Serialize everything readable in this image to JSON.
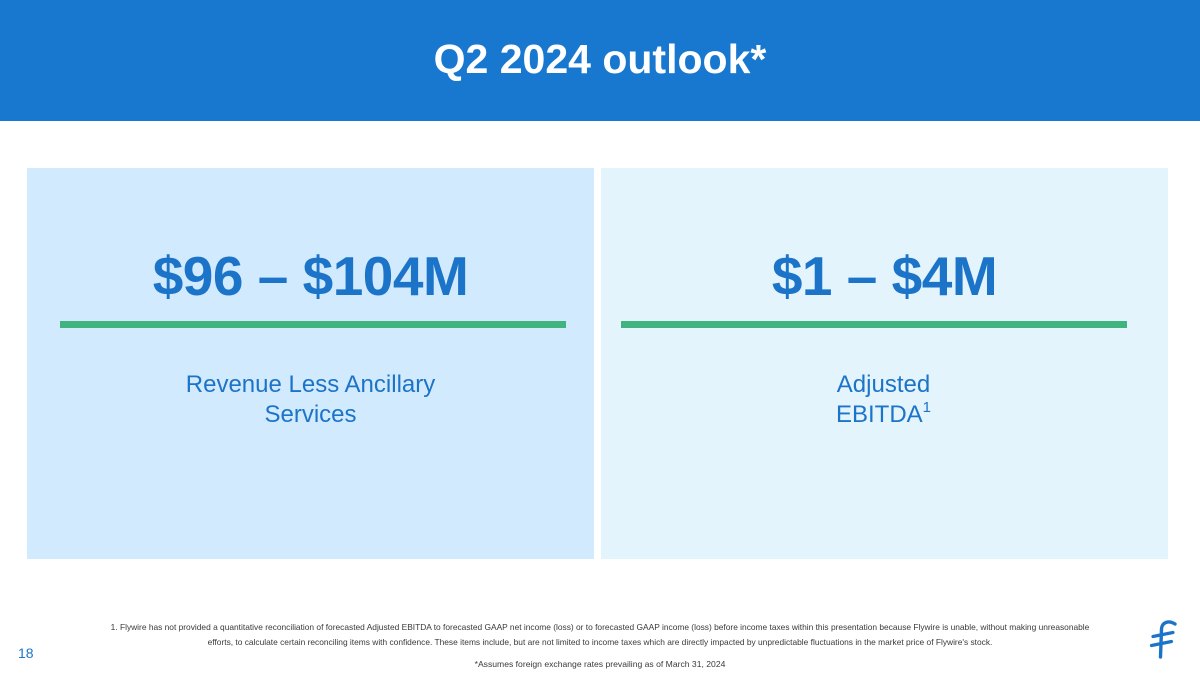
{
  "header": {
    "title": "Q2 2024 outlook*",
    "background_color": "#1878d0"
  },
  "panels": [
    {
      "value": "$96 – $104M",
      "label_line1": "Revenue Less Ancillary",
      "label_line2": "Services",
      "background_color": "#d2eafd"
    },
    {
      "value": "$1 – $4M",
      "label_line1": "Adjusted",
      "label_line2": "EBITDA",
      "footnote_marker": "1",
      "background_color": "#e3f4fc"
    }
  ],
  "colors": {
    "accent_blue": "#1c74c9",
    "divider_green": "#3fb47e"
  },
  "footnote": {
    "line1": "1. Flywire has not provided a quantitative reconciliation of forecasted Adjusted EBITDA to forecasted GAAP net income (loss) or to forecasted GAAP income (loss) before income taxes within this presentation because Flywire is unable, without making unreasonable",
    "line2": "efforts, to calculate certain reconciling items with confidence. These items include, but are not limited to income taxes which are directly impacted by unpredictable fluctuations in the market price of Flywire's stock."
  },
  "page_number": "18",
  "bottom_note": "*Assumes foreign exchange rates prevailing as of March 31, 2024",
  "logo_icon": "flywire-logo-icon"
}
